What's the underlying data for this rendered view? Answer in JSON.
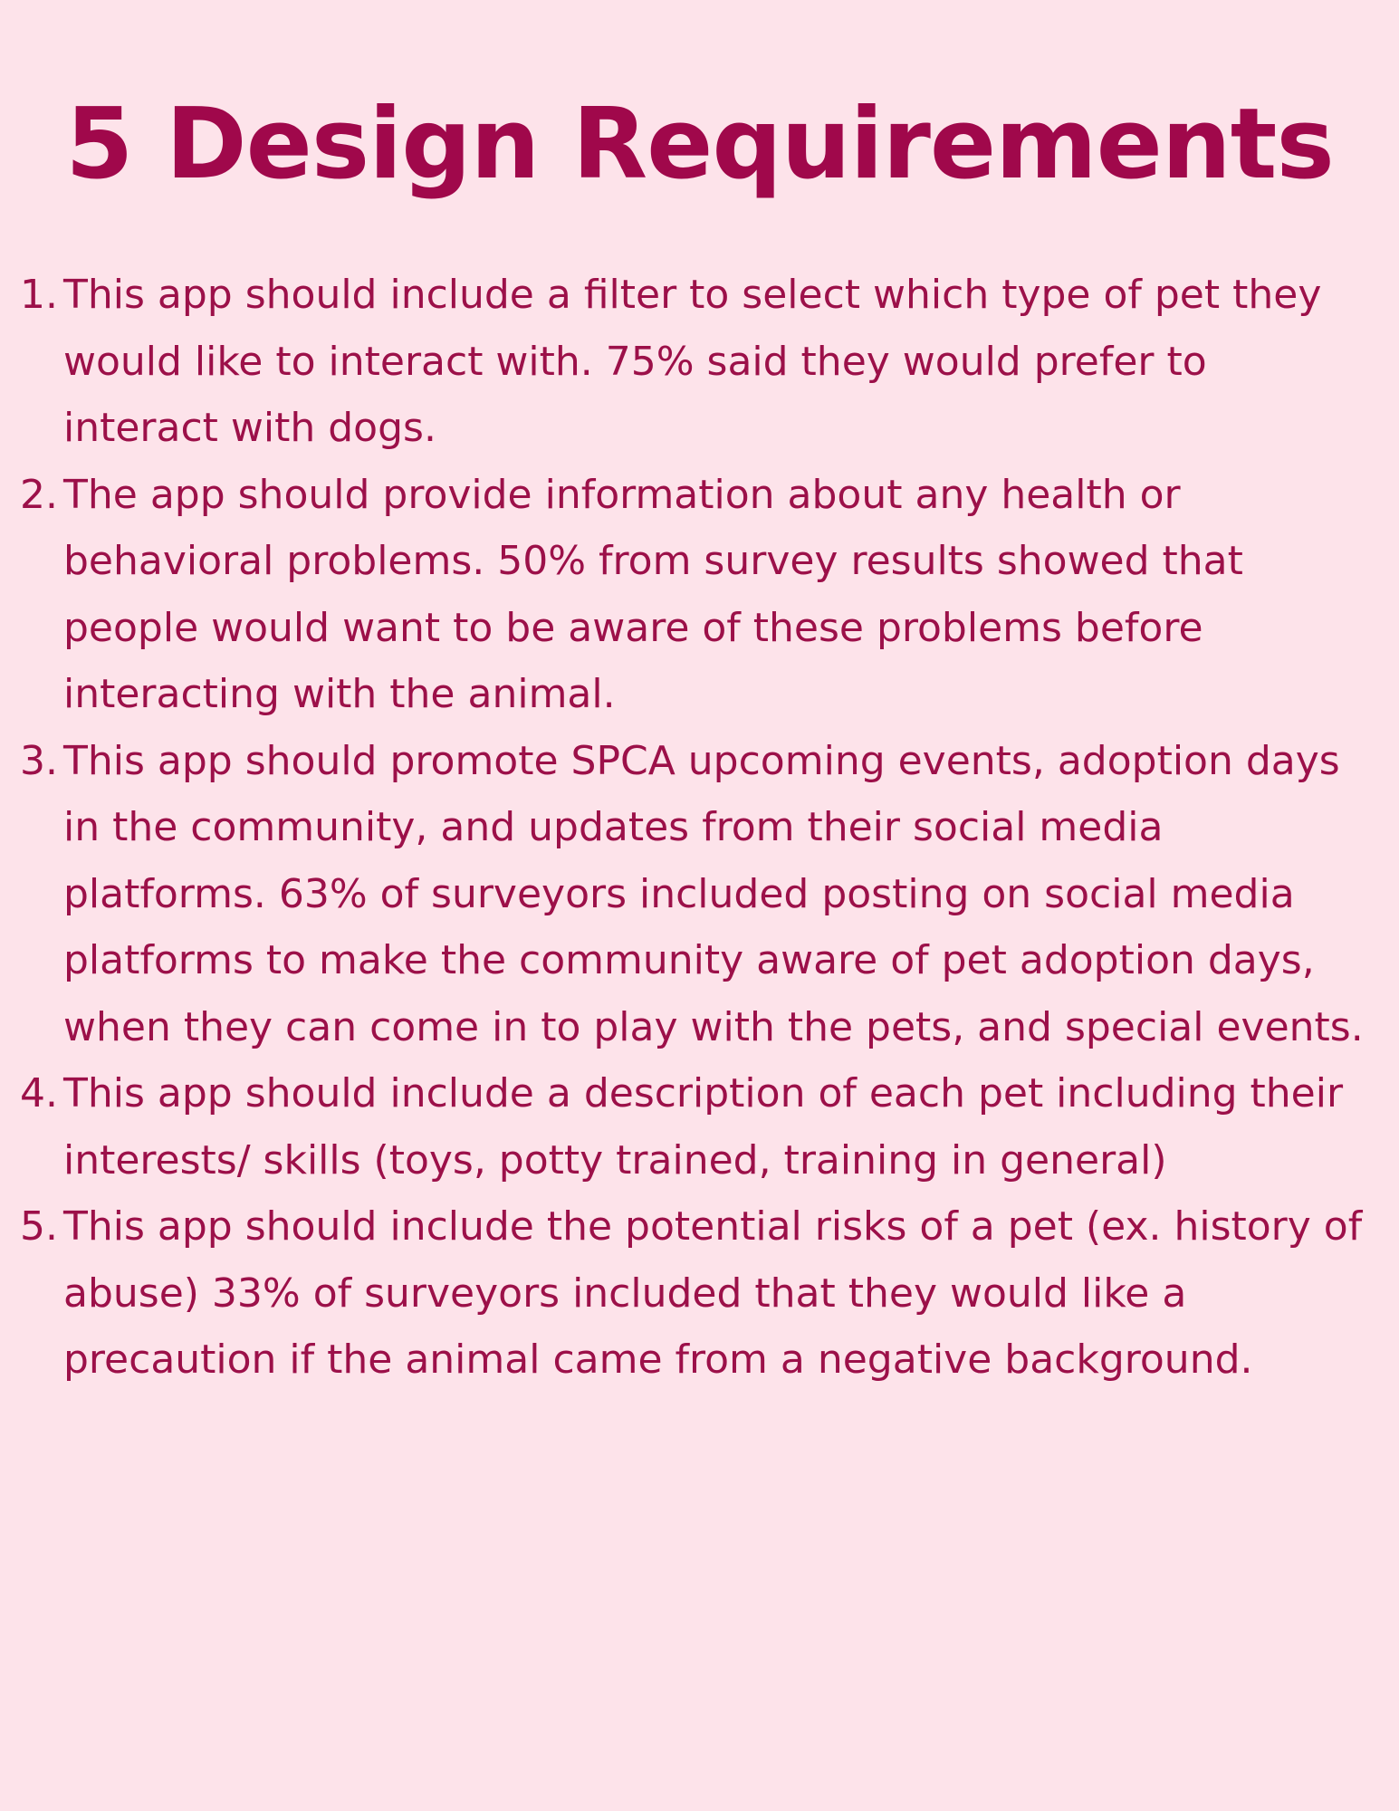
{
  "title": "5 Design Requirements",
  "requirements": [
    {
      "number": "1.",
      "text": "This app should include a filter to select which type of pet they would like to interact with. 75% said they would prefer to interact with dogs."
    },
    {
      "number": "2.",
      "text": "The app should provide information about any health or behavioral problems. 50% from survey results showed that people would want to be aware of these problems before interacting with the animal."
    },
    {
      "number": "3.",
      "text": "This app should promote SPCA upcoming events, adoption days in the community, and updates from their social media platforms. 63% of surveyors included posting on social media platforms to make the community aware of pet adoption days, when they can come in to play with the pets, and special events."
    },
    {
      "number": "4.",
      "text": "This app should include a description of each pet including their interests/ skills (toys, potty trained, training in general)"
    },
    {
      "number": "5.",
      "text": "This app should include the potential risks of a pet (ex. history of abuse) 33% of surveyors included that they would like a precaution if the animal came from a negative background."
    }
  ],
  "colors": {
    "background": "#fde3ea",
    "title": "#a0084b",
    "body_text": "#9c1049"
  }
}
